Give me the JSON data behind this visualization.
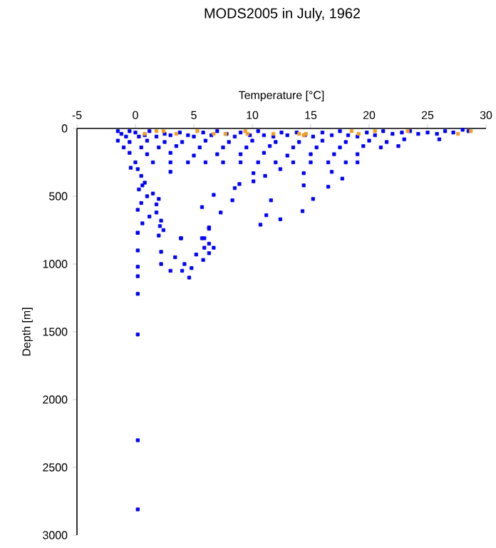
{
  "chart_data": {
    "type": "scatter",
    "title": "MODS2005 in July, 1962",
    "xlabel": "Temperature [°C]",
    "ylabel": "Depth [m]",
    "xlim": [
      -5,
      30
    ],
    "ylim": [
      3000,
      0
    ],
    "xticks": [
      -5,
      0,
      5,
      10,
      15,
      20,
      25,
      30
    ],
    "yticks": [
      0,
      500,
      1000,
      1500,
      2000,
      2500,
      3000
    ],
    "marker": "square",
    "grid": false,
    "series": [
      {
        "color": "#0000ff",
        "x": [
          -1.5,
          -1.2,
          -0.8,
          -0.5,
          0,
          0.3,
          0.8,
          1.2,
          1.8,
          2.5,
          3,
          3.8,
          4.5,
          5,
          5.8,
          6.5,
          7,
          7.8,
          8.5,
          9,
          9.8,
          10.5,
          11,
          11.8,
          12.5,
          13,
          13.8,
          14.5,
          15.2,
          16,
          16.8,
          17.5,
          18.2,
          19,
          19.8,
          20.5,
          21.2,
          22,
          22.8,
          23.5,
          24.2,
          25,
          25.8,
          26.5,
          27.2,
          28,
          28.5,
          -1.5,
          -0.5,
          1,
          2.5,
          4,
          6,
          8,
          10,
          12,
          14,
          16,
          18,
          20,
          21.5,
          23,
          26,
          -1,
          0.5,
          2,
          3.5,
          5.5,
          7.5,
          9.5,
          11.5,
          13.5,
          15.5,
          17.5,
          19.5,
          21,
          22.5,
          -0.5,
          1,
          3,
          5,
          7,
          9,
          11,
          13,
          15,
          17,
          19,
          0,
          1.5,
          3,
          4.5,
          6,
          7.5,
          9,
          10.5,
          12,
          13.5,
          15,
          16.5,
          18,
          19,
          0.2,
          0.5,
          0.8,
          0.3,
          1.0,
          0.5,
          1.5,
          2,
          1.2,
          0.6,
          1.8,
          2.2,
          2.4,
          -0.4,
          3.0,
          10.1,
          11.1,
          12.4,
          14.4,
          16.8,
          17.7,
          16.5,
          14.4,
          10.1,
          8.9,
          8.5,
          6.7,
          8.3,
          7.3,
          6.3,
          5.7,
          11.2,
          12.4,
          10.7,
          11.6,
          14.3,
          15.2,
          5.9,
          3.9,
          2.1,
          1.8,
          0.6,
          0.2,
          0.2,
          0.2,
          0.2,
          0.2,
          0.2,
          0.2,
          0.2,
          0.2,
          0.2,
          2.0,
          2.2,
          2.2,
          3.0,
          3.9,
          3.4,
          4.2,
          4.0,
          4.6,
          4.8,
          5.7,
          5.9,
          6.3,
          6.7,
          5.8,
          5.2,
          6.3,
          6.3
        ],
        "values": [
          20,
          40,
          60,
          20,
          30,
          60,
          50,
          20,
          60,
          40,
          50,
          30,
          50,
          60,
          30,
          50,
          20,
          40,
          60,
          30,
          50,
          20,
          50,
          60,
          30,
          50,
          30,
          50,
          60,
          30,
          50,
          20,
          50,
          60,
          30,
          50,
          20,
          40,
          30,
          20,
          40,
          30,
          40,
          20,
          30,
          10,
          20,
          90,
          100,
          90,
          100,
          100,
          90,
          100,
          90,
          100,
          100,
          90,
          100,
          90,
          100,
          80,
          80,
          140,
          140,
          140,
          130,
          140,
          140,
          140,
          130,
          140,
          140,
          140,
          130,
          140,
          130,
          180,
          190,
          180,
          200,
          190,
          190,
          180,
          200,
          190,
          190,
          190,
          250,
          250,
          250,
          250,
          250,
          250,
          250,
          250,
          250,
          250,
          250,
          250,
          250,
          250,
          300,
          350,
          400,
          450,
          500,
          550,
          480,
          520,
          650,
          700,
          620,
          680,
          750,
          290,
          320,
          330,
          350,
          300,
          330,
          320,
          370,
          430,
          420,
          390,
          410,
          440,
          490,
          530,
          620,
          730,
          580,
          640,
          670,
          710,
          530,
          610,
          520,
          810,
          810,
          720,
          560,
          420,
          600,
          770,
          770,
          900,
          1020,
          1090,
          1220,
          1520,
          2300,
          2810,
          790,
          910,
          1000,
          1050,
          810,
          950,
          1000,
          1050,
          1100,
          1030,
          810,
          880,
          850,
          880,
          970,
          930,
          920,
          740
        ]
      },
      {
        "color": "#f0a020",
        "x": [
          0.8,
          1.8,
          2.4,
          3.5,
          5.3,
          6.7,
          7.7,
          9.4,
          9.6,
          11.8,
          14.0,
          14.4,
          14.6,
          18.5,
          19.1,
          20.5,
          23.3,
          27.6,
          28.7
        ],
        "values": [
          40,
          20,
          20,
          40,
          20,
          40,
          40,
          20,
          40,
          40,
          40,
          50,
          40,
          20,
          40,
          20,
          20,
          40,
          20
        ]
      }
    ]
  }
}
